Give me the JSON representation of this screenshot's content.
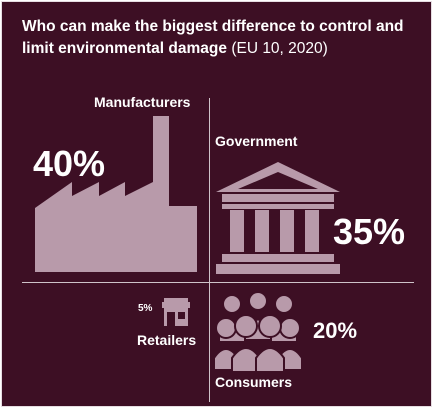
{
  "chart_data": {
    "type": "pictograph",
    "title_bold": "Who can make the biggest difference to control and limit environmental damage",
    "title_light": "(EU 10, 2020)",
    "categories": [
      "Manufacturers",
      "Government",
      "Consumers",
      "Retailers"
    ],
    "values": [
      40,
      35,
      20,
      5
    ],
    "value_labels": [
      "40%",
      "35%",
      "20%",
      "5%"
    ],
    "icons": [
      "factory-icon",
      "government-building-icon",
      "people-group-icon",
      "shop-icon"
    ]
  },
  "colors": {
    "background": "#3d0f24",
    "icon_fill": "#b89aaa",
    "text": "#ffffff",
    "divider": "#cfc3c9"
  }
}
